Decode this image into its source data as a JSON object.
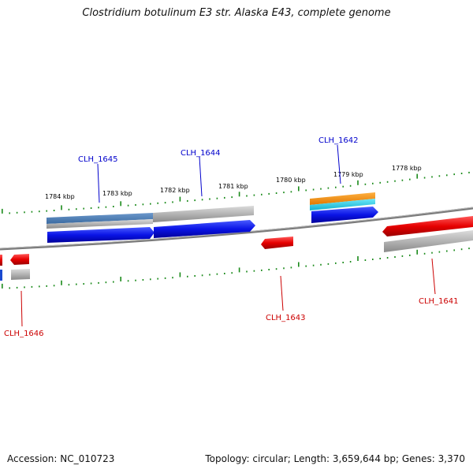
{
  "title": "Clostridium botulinum E3 str. Alaska E43, complete genome",
  "footer": {
    "accession": "Accession: NC_010723",
    "summary": "Topology: circular; Length: 3,659,644 bp; Genes: 3,370"
  },
  "ticks": [
    "1784 kbp",
    "1783 kbp",
    "1782 kbp",
    "1781 kbp",
    "1780 kbp",
    "1779 kbp",
    "1778 kbp"
  ],
  "genes_top": [
    {
      "label": "CLH_1645",
      "color": "#0000cc"
    },
    {
      "label": "CLH_1644",
      "color": "#0000cc"
    },
    {
      "label": "CLH_1642",
      "color": "#0000cc"
    }
  ],
  "genes_bottom": [
    {
      "label": "CLH_1646",
      "color": "#cc0000"
    },
    {
      "label": "CLH_1643",
      "color": "#cc0000"
    },
    {
      "label": "CLH_1641",
      "color": "#cc0000"
    }
  ],
  "colors": {
    "forward_cds": "#0a14e6",
    "reverse_cds": "#e60000",
    "backbone": "#808080",
    "tick": "#1a8a1a",
    "feature_grey": "#b3b3b3",
    "feature_steelblue": "#4a7ab0",
    "feature_orange": "#f08c00",
    "feature_cyan": "#20c8e0"
  }
}
